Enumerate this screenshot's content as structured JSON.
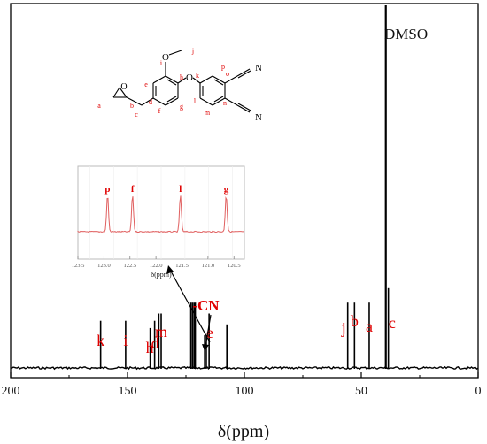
{
  "chart_data": {
    "type": "line",
    "title": "",
    "xlabel": "δ(ppm)",
    "ylabel": "",
    "xlim": [
      200,
      0
    ],
    "x_reversed": true,
    "xticks": [
      "200",
      "150",
      "100",
      "50",
      "0"
    ],
    "grid": false,
    "legend": "none",
    "colors": {
      "spectrum": "#000000",
      "labels": "#e00000",
      "inset": "#e06060"
    },
    "series": [
      {
        "peaks": [
          {
            "ppm": 161.5,
            "height": 0.13
          },
          {
            "ppm": 150.8,
            "height": 0.13
          },
          {
            "ppm": 140.3,
            "height": 0.11
          },
          {
            "ppm": 138.4,
            "height": 0.13
          },
          {
            "ppm": 136.6,
            "height": 0.15
          },
          {
            "ppm": 135.6,
            "height": 0.15
          },
          {
            "ppm": 122.9,
            "height": 0.18
          },
          {
            "ppm": 122.2,
            "height": 0.18
          },
          {
            "ppm": 121.5,
            "height": 0.18
          },
          {
            "ppm": 121.0,
            "height": 0.18
          },
          {
            "ppm": 117.0,
            "height": 0.09
          },
          {
            "ppm": 116.3,
            "height": 0.09
          },
          {
            "ppm": 115.1,
            "height": 0.15
          },
          {
            "ppm": 107.5,
            "height": 0.12
          },
          {
            "ppm": 55.8,
            "height": 0.18
          },
          {
            "ppm": 52.9,
            "height": 0.18
          },
          {
            "ppm": 46.6,
            "height": 0.18
          },
          {
            "ppm": 39.5,
            "height": 1.0
          },
          {
            "ppm": 38.4,
            "height": 0.22
          }
        ]
      }
    ],
    "peak_labels": [
      {
        "text": "k",
        "ppm": 161.5
      },
      {
        "text": "i",
        "ppm": 150.8
      },
      {
        "text": "h",
        "ppm": 140.5
      },
      {
        "text": "d",
        "ppm": 138.2
      },
      {
        "text": "m",
        "ppm": 135.6
      },
      {
        "text": "-CN",
        "ppm": 116.5
      },
      {
        "text": "e",
        "ppm": 114.8
      },
      {
        "text": "j",
        "ppm": 57.5
      },
      {
        "text": "b",
        "ppm": 52.9
      },
      {
        "text": "a",
        "ppm": 46.6
      },
      {
        "text": "c",
        "ppm": 36.8
      }
    ],
    "annotations": [
      "DMSO"
    ],
    "inset": {
      "xlim": [
        123.5,
        120.3
      ],
      "xticks": [
        "123.5",
        "123.0",
        "122.5",
        "122.0",
        "121.5",
        "121.0",
        "120.5"
      ],
      "xlabel": "δ(ppm)",
      "peaks": [
        {
          "label": "p",
          "ppm": 122.93
        },
        {
          "label": "f",
          "ppm": 122.45
        },
        {
          "label": "l",
          "ppm": 121.53
        },
        {
          "label": "g",
          "ppm": 120.65
        }
      ]
    },
    "structure": {
      "atoms": [
        "O",
        "O",
        "O",
        "N",
        "N"
      ],
      "labels": [
        "a",
        "b",
        "c",
        "d",
        "e",
        "f",
        "g",
        "h",
        "i",
        "j",
        "k",
        "l",
        "m",
        "n",
        "o",
        "p"
      ]
    }
  }
}
